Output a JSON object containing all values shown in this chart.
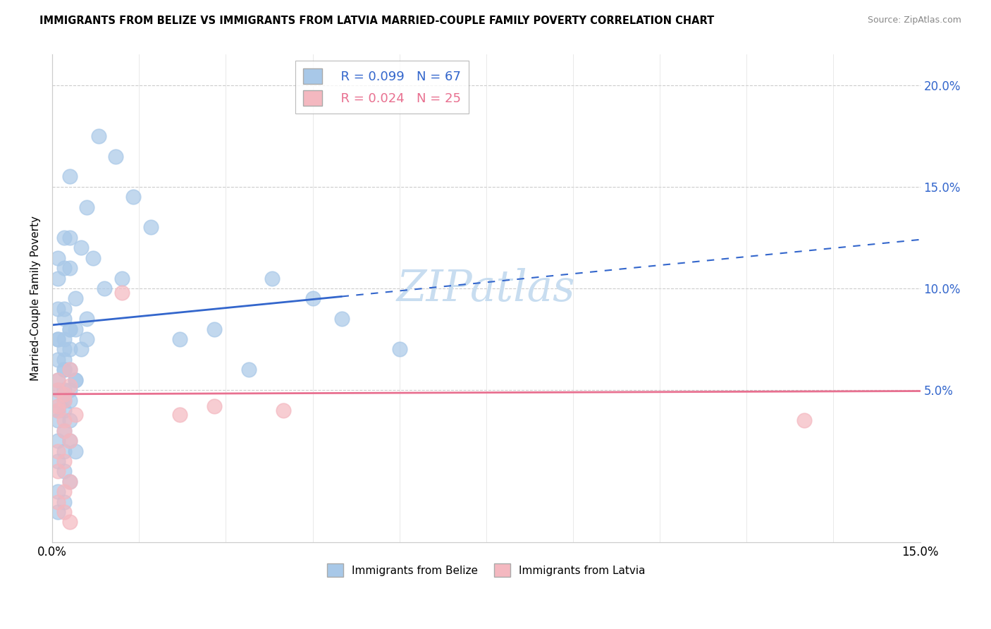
{
  "title": "IMMIGRANTS FROM BELIZE VS IMMIGRANTS FROM LATVIA MARRIED-COUPLE FAMILY POVERTY CORRELATION CHART",
  "source": "Source: ZipAtlas.com",
  "ylabel": "Married-Couple Family Poverty",
  "xlim": [
    0.0,
    0.15
  ],
  "ylim": [
    -0.025,
    0.215
  ],
  "belize_R": "0.099",
  "belize_N": "67",
  "latvia_R": "0.024",
  "latvia_N": "25",
  "belize_color": "#a8c8e8",
  "latvia_color": "#f4b8c0",
  "belize_line_color": "#3366cc",
  "latvia_line_color": "#e87090",
  "watermark_color": "#c8ddf0",
  "belize_x": [
    0.008,
    0.011,
    0.003,
    0.014,
    0.006,
    0.017,
    0.003,
    0.007,
    0.002,
    0.012,
    0.002,
    0.005,
    0.001,
    0.003,
    0.001,
    0.009,
    0.004,
    0.002,
    0.006,
    0.003,
    0.001,
    0.002,
    0.004,
    0.001,
    0.003,
    0.002,
    0.006,
    0.003,
    0.005,
    0.002,
    0.001,
    0.002,
    0.001,
    0.003,
    0.002,
    0.004,
    0.001,
    0.002,
    0.003,
    0.001,
    0.002,
    0.004,
    0.001,
    0.002,
    0.003,
    0.001,
    0.002,
    0.003,
    0.001,
    0.002,
    0.001,
    0.003,
    0.002,
    0.004,
    0.001,
    0.002,
    0.003,
    0.001,
    0.002,
    0.001,
    0.038,
    0.045,
    0.028,
    0.05,
    0.022,
    0.06,
    0.034
  ],
  "belize_y": [
    0.175,
    0.165,
    0.155,
    0.145,
    0.14,
    0.13,
    0.125,
    0.115,
    0.11,
    0.105,
    0.125,
    0.12,
    0.115,
    0.11,
    0.105,
    0.1,
    0.095,
    0.09,
    0.085,
    0.08,
    0.09,
    0.085,
    0.08,
    0.075,
    0.08,
    0.075,
    0.075,
    0.07,
    0.07,
    0.065,
    0.075,
    0.07,
    0.065,
    0.06,
    0.06,
    0.055,
    0.055,
    0.05,
    0.05,
    0.045,
    0.06,
    0.055,
    0.05,
    0.045,
    0.045,
    0.04,
    0.04,
    0.035,
    0.035,
    0.03,
    0.025,
    0.025,
    0.02,
    0.02,
    0.015,
    0.01,
    0.005,
    0.0,
    -0.005,
    -0.01,
    0.105,
    0.095,
    0.08,
    0.085,
    0.075,
    0.07,
    0.06
  ],
  "latvia_x": [
    0.001,
    0.002,
    0.003,
    0.001,
    0.002,
    0.001,
    0.003,
    0.002,
    0.001,
    0.004,
    0.002,
    0.003,
    0.001,
    0.002,
    0.001,
    0.003,
    0.002,
    0.001,
    0.002,
    0.003,
    0.012,
    0.022,
    0.028,
    0.13,
    0.04
  ],
  "latvia_y": [
    0.05,
    0.045,
    0.06,
    0.04,
    0.048,
    0.042,
    0.052,
    0.035,
    0.055,
    0.038,
    0.03,
    0.025,
    0.02,
    0.015,
    0.01,
    0.005,
    0.0,
    -0.005,
    -0.01,
    -0.015,
    0.098,
    0.038,
    0.042,
    0.035,
    0.04
  ],
  "belize_intercept": 0.082,
  "belize_slope": 0.28,
  "latvia_intercept": 0.048,
  "latvia_slope": 0.01
}
